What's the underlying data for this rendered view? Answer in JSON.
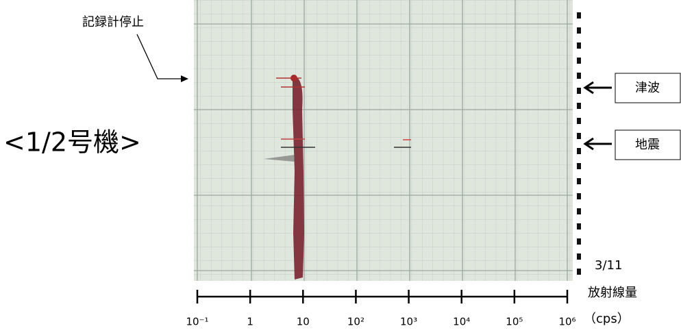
{
  "annotations": {
    "recorder_stop": "記録計停止",
    "unit_label": "<1/2号機>",
    "tsunami": "津波",
    "earthquake": "地震",
    "date": "3/11",
    "quantity": "放射線量",
    "unit": "（cps）"
  },
  "scale": {
    "log": true,
    "xlim": [
      0.1,
      1000000
    ],
    "xticks": [
      {
        "value": 0.1,
        "label": "10⁻¹"
      },
      1,
      10,
      {
        "value": 100,
        "label": "10²"
      },
      {
        "value": 1000,
        "label": "10³"
      },
      {
        "value": 10000,
        "label": "10⁴"
      },
      {
        "value": 100000,
        "label": "10⁵"
      },
      {
        "value": 1000000,
        "label": "10⁶"
      }
    ]
  }
}
